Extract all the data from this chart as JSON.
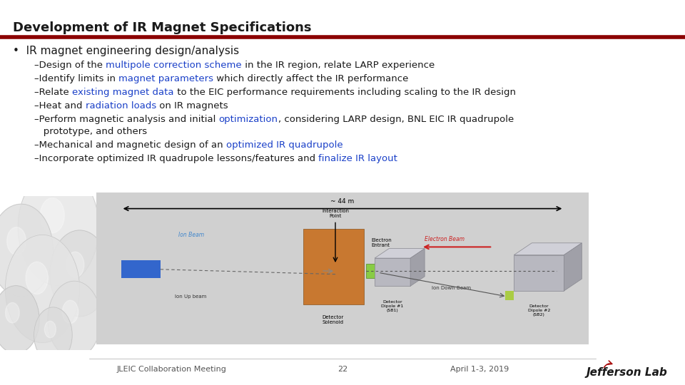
{
  "title": "Development of IR Magnet Specifications",
  "title_color": "#1a1a1a",
  "title_fontsize": 13,
  "red_line_color": "#8B0000",
  "bg_color": "#ffffff",
  "bullet_main": "IR magnet engineering design/analysis",
  "bullet_color": "#1a1a1a",
  "bullet_fontsize": 11,
  "sub_fontsize": 9.5,
  "highlight_color": "#1a40c8",
  "sub_items": [
    {
      "prefix": "–Design of the ",
      "highlight": "multipole correction scheme",
      "suffix": " in the IR region, relate LARP experience"
    },
    {
      "prefix": "–Identify limits in ",
      "highlight": "magnet parameters",
      "suffix": " which directly affect the IR performance"
    },
    {
      "prefix": "–Relate ",
      "highlight": "existing magnet data",
      "suffix": " to the EIC performance requirements including scaling to the IR design"
    },
    {
      "prefix": "–Heat and ",
      "highlight": "radiation loads",
      "suffix": " on IR magnets"
    },
    {
      "prefix": "–Perform magnetic analysis and initial ",
      "highlight": "optimization",
      "suffix": ", considering LARP design, BNL EIC IR quadrupole"
    },
    {
      "prefix": "   prototype, and others",
      "highlight": "",
      "suffix": ""
    },
    {
      "prefix": "–Mechanical and magnetic design of an ",
      "highlight": "optimized IR quadrupole",
      "suffix": ""
    },
    {
      "prefix": "–Incorporate optimized IR quadrupole lessons/features and ",
      "highlight": "finalize IR layout",
      "suffix": ""
    }
  ],
  "footer_left": "JLEIC Collaboration Meeting",
  "footer_center": "22",
  "footer_right": "April 1-3, 2019",
  "footer_color": "#555555",
  "footer_fontsize": 8
}
